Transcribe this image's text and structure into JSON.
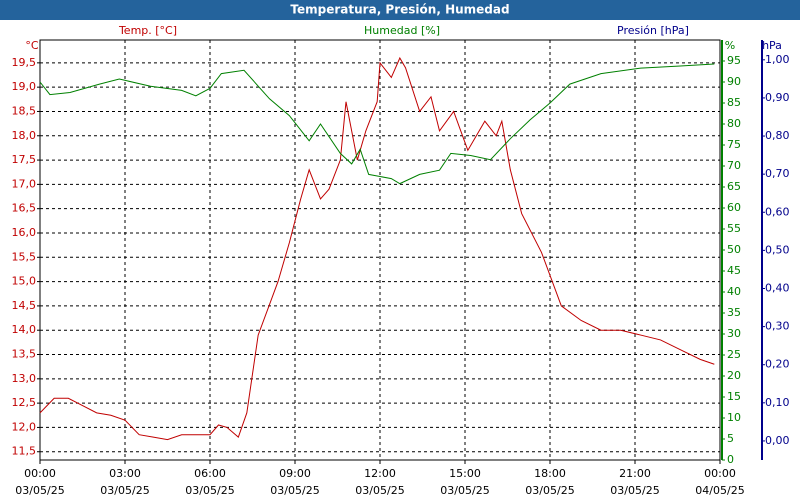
{
  "chart_data": {
    "type": "line",
    "title": "Temperatura, Presión, Humedad",
    "grid": true,
    "xlim": [
      0,
      24
    ],
    "xticks": [
      {
        "value": 0,
        "label": "00:00"
      },
      {
        "value": 3,
        "label": "03:00"
      },
      {
        "value": 6,
        "label": "06:00"
      },
      {
        "value": 9,
        "label": "09:00"
      },
      {
        "value": 12,
        "label": "12:00"
      },
      {
        "value": 15,
        "label": "15:00"
      },
      {
        "value": 18,
        "label": "18:00"
      },
      {
        "value": 21,
        "label": "21:00"
      },
      {
        "value": 24,
        "label": "00:00"
      }
    ],
    "xtick_dates": [
      "03/05/25",
      "03/05/25",
      "03/05/25",
      "03/05/25",
      "03/05/25",
      "03/05/25",
      "03/05/25",
      "03/05/25",
      "04/05/25"
    ],
    "axes": [
      {
        "id": "y",
        "unit": "°C",
        "label": "Temp. [°C]",
        "color": "#c00000",
        "ylim": [
          11.33,
          19.97
        ],
        "yticks": [
          {
            "value": 11.5,
            "label": "11,5"
          },
          {
            "value": 12,
            "label": "12,0"
          },
          {
            "value": 12.5,
            "label": "12,5"
          },
          {
            "value": 13,
            "label": "13,0"
          },
          {
            "value": 13.5,
            "label": "13,5"
          },
          {
            "value": 14,
            "label": "14,0"
          },
          {
            "value": 14.5,
            "label": "14,5"
          },
          {
            "value": 15,
            "label": "15,0"
          },
          {
            "value": 15.5,
            "label": "15,5"
          },
          {
            "value": 16,
            "label": "16,0"
          },
          {
            "value": 16.5,
            "label": "16,5"
          },
          {
            "value": 17,
            "label": "17,0"
          },
          {
            "value": 17.5,
            "label": "17,5"
          },
          {
            "value": 18,
            "label": "18,0"
          },
          {
            "value": 18.5,
            "label": "18,5"
          },
          {
            "value": 19,
            "label": "19,0"
          },
          {
            "value": 19.5,
            "label": "19,5"
          }
        ]
      },
      {
        "id": "y2",
        "unit": "%",
        "label": "Humedad [%]",
        "color": "#008000",
        "ylim": [
          0,
          100
        ],
        "yticks": [
          0,
          5,
          10,
          15,
          20,
          25,
          30,
          35,
          40,
          45,
          50,
          55,
          60,
          65,
          70,
          75,
          80,
          85,
          90,
          95
        ]
      },
      {
        "id": "y3",
        "unit": "hPa",
        "label": "Presión [hPa]",
        "color": "#00008b",
        "ylim": [
          -0.05,
          1.052
        ],
        "yticks": [
          {
            "value": 0,
            "label": "0,00"
          },
          {
            "value": 0.1,
            "label": "0,10"
          },
          {
            "value": 0.2,
            "label": "0,20"
          },
          {
            "value": 0.3,
            "label": "0,30"
          },
          {
            "value": 0.4,
            "label": "0,40"
          },
          {
            "value": 0.5,
            "label": "0,50"
          },
          {
            "value": 0.6,
            "label": "0,60"
          },
          {
            "value": 0.7,
            "label": "0,70"
          },
          {
            "value": 0.8,
            "label": "0,80"
          },
          {
            "value": 0.9,
            "label": "0,90"
          },
          {
            "value": 1,
            "label": "1,00"
          }
        ]
      }
    ],
    "series": [
      {
        "axis": "y",
        "color": "#c00000",
        "x": [
          0,
          0.5,
          1,
          1.5,
          2,
          2.5,
          3,
          3.5,
          4,
          4.5,
          5,
          5.5,
          6,
          6.3,
          6.6,
          7,
          7.3,
          7.7,
          8.4,
          8.8,
          9.2,
          9.5,
          9.9,
          10.2,
          10.6,
          10.8,
          11.2,
          11.5,
          11.9,
          12.0,
          12.4,
          12.7,
          12.9,
          13.4,
          13.8,
          14.1,
          14.6,
          15.1,
          15.7,
          16.1,
          16.3,
          16.6,
          17.0,
          17.7,
          18.4,
          19.1,
          19.8,
          20.5,
          21.2,
          21.9,
          22.6,
          23.3,
          23.8
        ],
        "values": [
          12.3,
          12.6,
          12.6,
          12.45,
          12.3,
          12.25,
          12.15,
          11.85,
          11.8,
          11.75,
          11.85,
          11.85,
          11.85,
          12.05,
          12.0,
          11.8,
          12.3,
          13.9,
          15.0,
          15.8,
          16.7,
          17.3,
          16.7,
          16.9,
          17.5,
          18.7,
          17.5,
          18.1,
          18.7,
          19.5,
          19.2,
          19.6,
          19.4,
          18.5,
          18.8,
          18.1,
          18.5,
          17.7,
          18.3,
          18.0,
          18.3,
          17.3,
          16.4,
          15.6,
          14.5,
          14.2,
          14.0,
          14.0,
          13.9,
          13.8,
          13.6,
          13.4,
          13.3
        ]
      },
      {
        "axis": "y2",
        "color": "#008000",
        "x": [
          0,
          0.35,
          1.06,
          2.1,
          2.8,
          3.9,
          5.0,
          5.5,
          6.0,
          6.4,
          7.2,
          8.1,
          8.8,
          9.5,
          9.9,
          10.6,
          11.0,
          11.3,
          11.6,
          12.4,
          12.7,
          13.4,
          14.1,
          14.5,
          15.2,
          15.9,
          16.6,
          17.3,
          18.0,
          18.7,
          19.8,
          21.2,
          22.6,
          23.8
        ],
        "values": [
          90,
          87,
          87.5,
          89.5,
          90.7,
          89,
          88,
          86.7,
          88.5,
          92,
          92.8,
          86,
          82,
          76,
          80,
          73,
          70.5,
          74,
          68,
          67,
          65.8,
          68,
          69,
          73,
          72.5,
          71.5,
          76.5,
          81,
          85,
          89.5,
          92,
          93.3,
          93.8,
          94.3
        ]
      }
    ]
  }
}
